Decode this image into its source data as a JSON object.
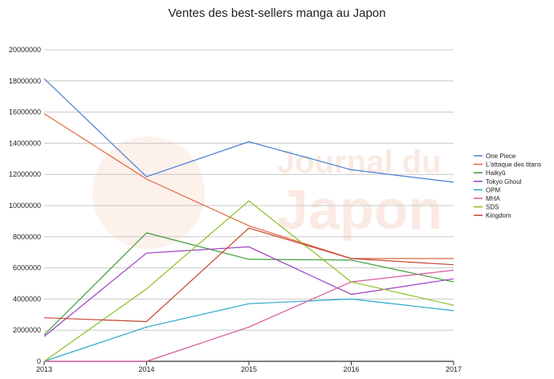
{
  "chart_data": {
    "type": "line",
    "title": "Ventes des best-sellers manga au Japon",
    "x": [
      "2013",
      "2014",
      "2015",
      "2016",
      "2017"
    ],
    "y_ticks": [
      "0",
      "2000000",
      "4000000",
      "6000000",
      "8000000",
      "10000000",
      "12000000",
      "14000000",
      "16000000",
      "18000000",
      "20000000"
    ],
    "ylim": [
      0,
      20000000
    ],
    "grid": true,
    "legend_position": "right",
    "series": [
      {
        "name": "One Piece",
        "color": "#4a7fd4",
        "values": [
          18150000,
          11850000,
          14100000,
          12300000,
          11500000
        ]
      },
      {
        "name": "L'attaque des titans",
        "color": "#e0663b",
        "values": [
          15900000,
          11700000,
          8700000,
          6600000,
          6600000
        ]
      },
      {
        "name": "Haikyû",
        "color": "#3e9c3a",
        "values": [
          1700000,
          8250000,
          6550000,
          6500000,
          5100000
        ]
      },
      {
        "name": "Tokyo Ghoul",
        "color": "#9b3fc0",
        "values": [
          1600000,
          6950000,
          7350000,
          4300000,
          5300000
        ]
      },
      {
        "name": "OPM",
        "color": "#2aa8c9",
        "values": [
          0,
          2200000,
          3700000,
          4000000,
          3250000
        ]
      },
      {
        "name": "MHA",
        "color": "#d9559b",
        "values": [
          0,
          0,
          2200000,
          5100000,
          5850000
        ]
      },
      {
        "name": "SDS",
        "color": "#8cbf26",
        "values": [
          0,
          4650000,
          10300000,
          5100000,
          3600000
        ]
      },
      {
        "name": "Kingdom",
        "color": "#c4432e",
        "values": [
          2800000,
          2550000,
          8550000,
          6600000,
          6200000
        ]
      }
    ]
  },
  "watermark": {
    "line1": "Journal du",
    "line2": "Japon",
    "color": "#f5d2c2"
  }
}
